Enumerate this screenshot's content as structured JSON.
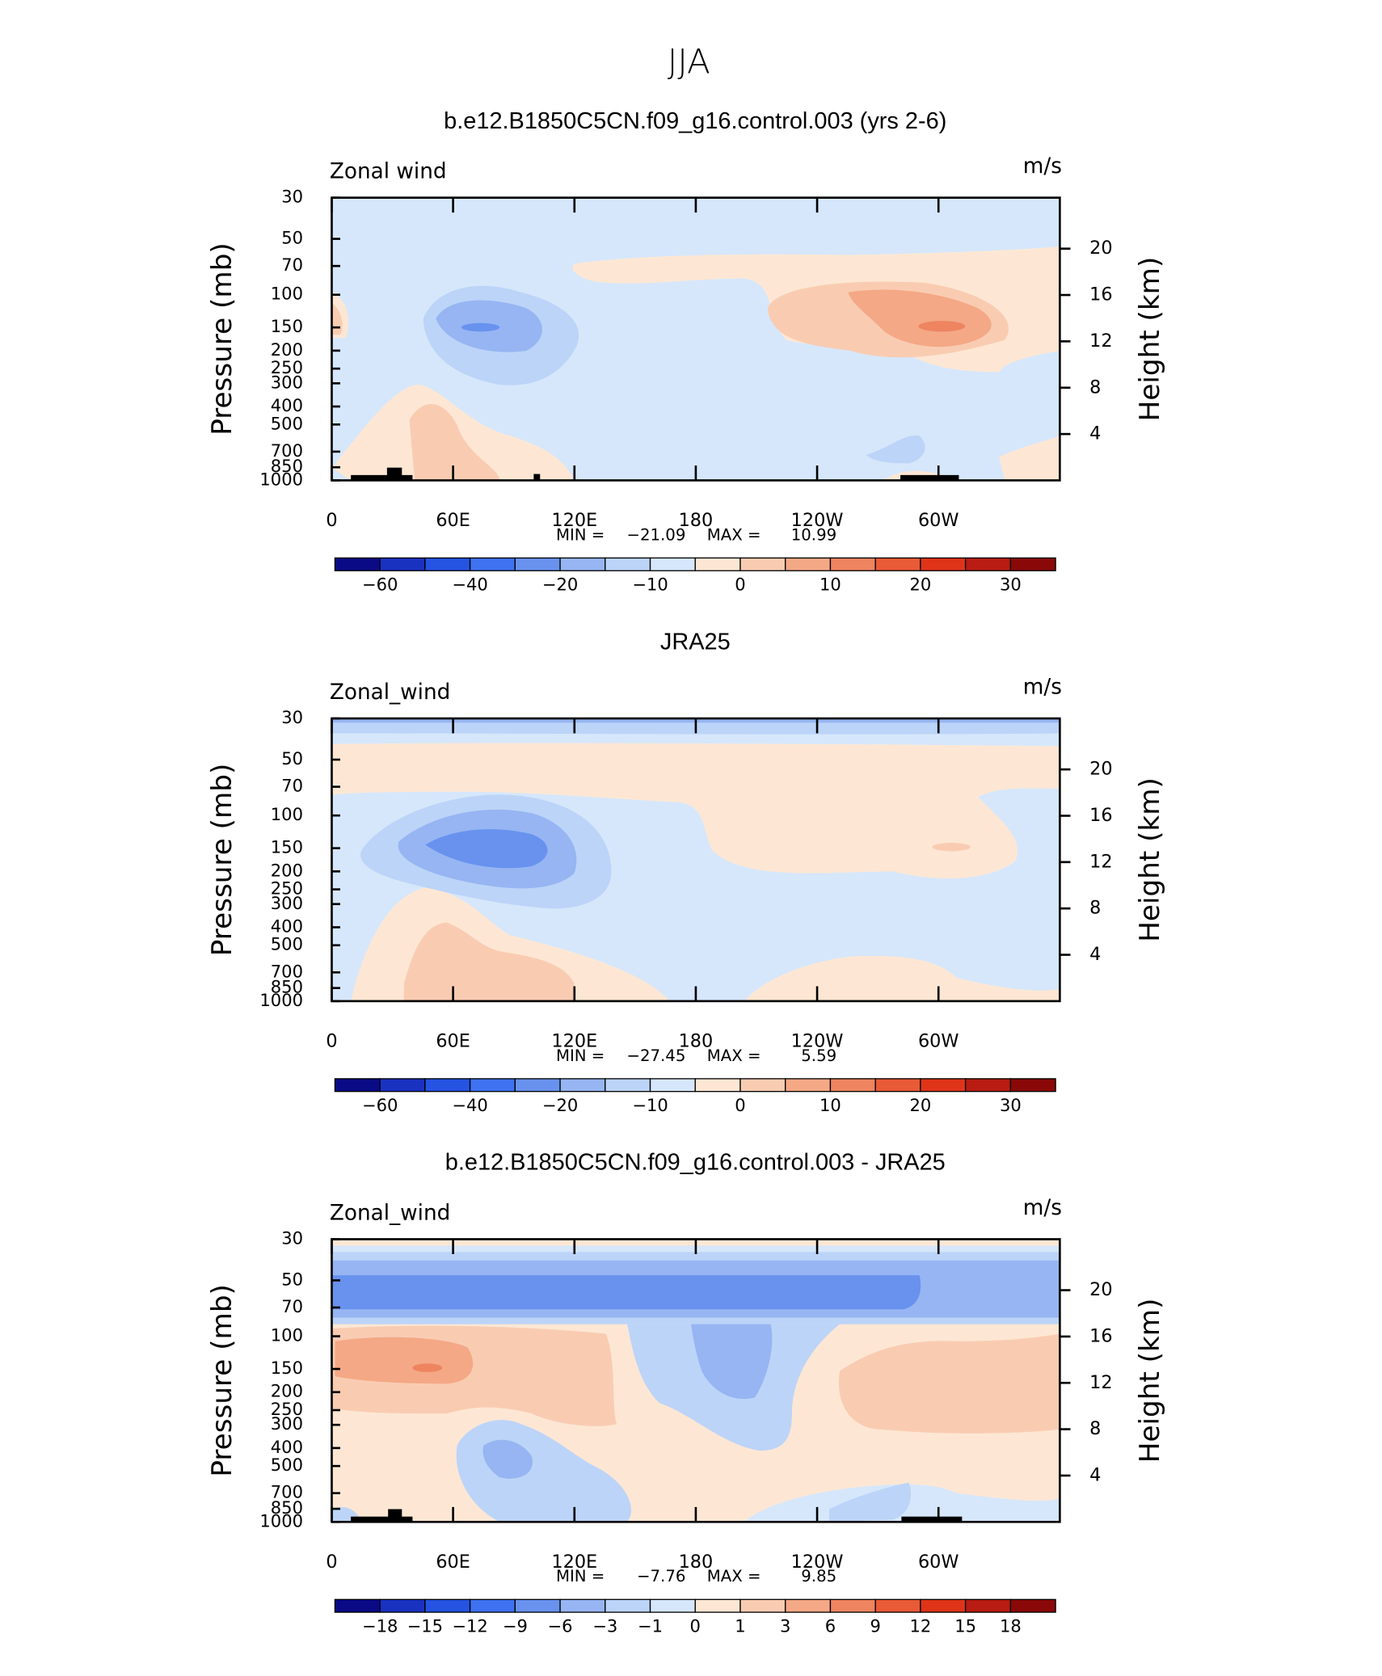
{
  "figure_title": "JJA",
  "chart_data": [
    {
      "type": "contour",
      "title": "b.e12.B1850C5CN.f09_g16.control.003 (yrs 2-6)",
      "left_string": "Zonal wind",
      "right_string": "m/s",
      "ylabel": "Pressure (mb)",
      "y2label": "Height (km)",
      "ylog": true,
      "xlim": [
        0,
        360
      ],
      "xticks": [
        0,
        {
          "value": 60,
          "label": "60E"
        },
        {
          "value": 120,
          "label": "120E"
        },
        180,
        {
          "value": 240,
          "label": "120W"
        },
        {
          "value": 300,
          "label": "60W"
        }
      ],
      "ylim": [
        1000,
        30
      ],
      "yticks": [
        30,
        50,
        70,
        100,
        150,
        200,
        250,
        300,
        400,
        500,
        700,
        850,
        1000
      ],
      "y2lim": [
        0,
        24.4
      ],
      "y2ticks": [
        4,
        8,
        12,
        16,
        20
      ],
      "min_label": "MIN =",
      "min": "−21.09",
      "max_label": "MAX =",
      "max": "10.99",
      "colorbar": {
        "colors": [
          "#0a0a86",
          "#1a32c0",
          "#2553e2",
          "#3f72f0",
          "#6892ee",
          "#96b5f2",
          "#bcd4f8",
          "#d6e7fb",
          "#fde7d4",
          "#f9ccb2",
          "#f4a886",
          "#ee8460",
          "#e95a36",
          "#df3418",
          "#b81c12",
          "#8a0808"
        ],
        "levels": [
          {
            "value": -60,
            "label": "−60"
          },
          null,
          {
            "value": -40,
            "label": "−40"
          },
          null,
          {
            "value": -20,
            "label": "−20"
          },
          null,
          {
            "value": -10,
            "label": "−10"
          },
          null,
          0,
          null,
          10,
          null,
          20,
          null,
          30
        ]
      }
    },
    {
      "type": "contour",
      "title": "JRA25",
      "left_string": "Zonal_wind",
      "right_string": "m/s",
      "ylabel": "Pressure (mb)",
      "y2label": "Height (km)",
      "ylog": true,
      "xlim": [
        0,
        360
      ],
      "xticks": [
        0,
        {
          "value": 60,
          "label": "60E"
        },
        {
          "value": 120,
          "label": "120E"
        },
        180,
        {
          "value": 240,
          "label": "120W"
        },
        {
          "value": 300,
          "label": "60W"
        }
      ],
      "ylim": [
        1000,
        30
      ],
      "yticks": [
        30,
        50,
        70,
        100,
        150,
        200,
        250,
        300,
        400,
        500,
        700,
        850,
        1000
      ],
      "y2lim": [
        0,
        24.4
      ],
      "y2ticks": [
        4,
        8,
        12,
        16,
        20
      ],
      "min_label": "MIN =",
      "min": "−27.45",
      "max_label": "MAX =",
      "max": "5.59",
      "colorbar": {
        "colors": [
          "#0a0a86",
          "#1a32c0",
          "#2553e2",
          "#3f72f0",
          "#6892ee",
          "#96b5f2",
          "#bcd4f8",
          "#d6e7fb",
          "#fde7d4",
          "#f9ccb2",
          "#f4a886",
          "#ee8460",
          "#e95a36",
          "#df3418",
          "#b81c12",
          "#8a0808"
        ],
        "levels": [
          {
            "value": -60,
            "label": "−60"
          },
          null,
          {
            "value": -40,
            "label": "−40"
          },
          null,
          {
            "value": -20,
            "label": "−20"
          },
          null,
          {
            "value": -10,
            "label": "−10"
          },
          null,
          0,
          null,
          10,
          null,
          20,
          null,
          30
        ]
      }
    },
    {
      "type": "contour",
      "title": "b.e12.B1850C5CN.f09_g16.control.003 - JRA25",
      "left_string": "Zonal_wind",
      "right_string": "m/s",
      "ylabel": "Pressure (mb)",
      "y2label": "Height (km)",
      "ylog": true,
      "xlim": [
        0,
        360
      ],
      "xticks": [
        0,
        {
          "value": 60,
          "label": "60E"
        },
        {
          "value": 120,
          "label": "120E"
        },
        180,
        {
          "value": 240,
          "label": "120W"
        },
        {
          "value": 300,
          "label": "60W"
        }
      ],
      "ylim": [
        1000,
        30
      ],
      "yticks": [
        30,
        50,
        70,
        100,
        150,
        200,
        250,
        300,
        400,
        500,
        700,
        850,
        1000
      ],
      "y2lim": [
        0,
        24.4
      ],
      "y2ticks": [
        4,
        8,
        12,
        16,
        20
      ],
      "min_label": "MIN =",
      "min": "−7.76",
      "max_label": "MAX =",
      "max": "9.85",
      "colorbar": {
        "colors": [
          "#0a0a86",
          "#1a32c0",
          "#2553e2",
          "#3f72f0",
          "#6892ee",
          "#96b5f2",
          "#bcd4f8",
          "#d6e7fb",
          "#fde7d4",
          "#f9ccb2",
          "#f4a886",
          "#ee8460",
          "#e95a36",
          "#df3418",
          "#b81c12",
          "#8a0808"
        ],
        "levels": [
          {
            "value": -18,
            "label": "−18"
          },
          {
            "value": -15,
            "label": "−15"
          },
          {
            "value": -12,
            "label": "−12"
          },
          {
            "value": -9,
            "label": "−9"
          },
          {
            "value": -6,
            "label": "−6"
          },
          {
            "value": -3,
            "label": "−3"
          },
          {
            "value": -1,
            "label": "−1"
          },
          0,
          1,
          3,
          6,
          9,
          12,
          15,
          18
        ]
      }
    }
  ]
}
